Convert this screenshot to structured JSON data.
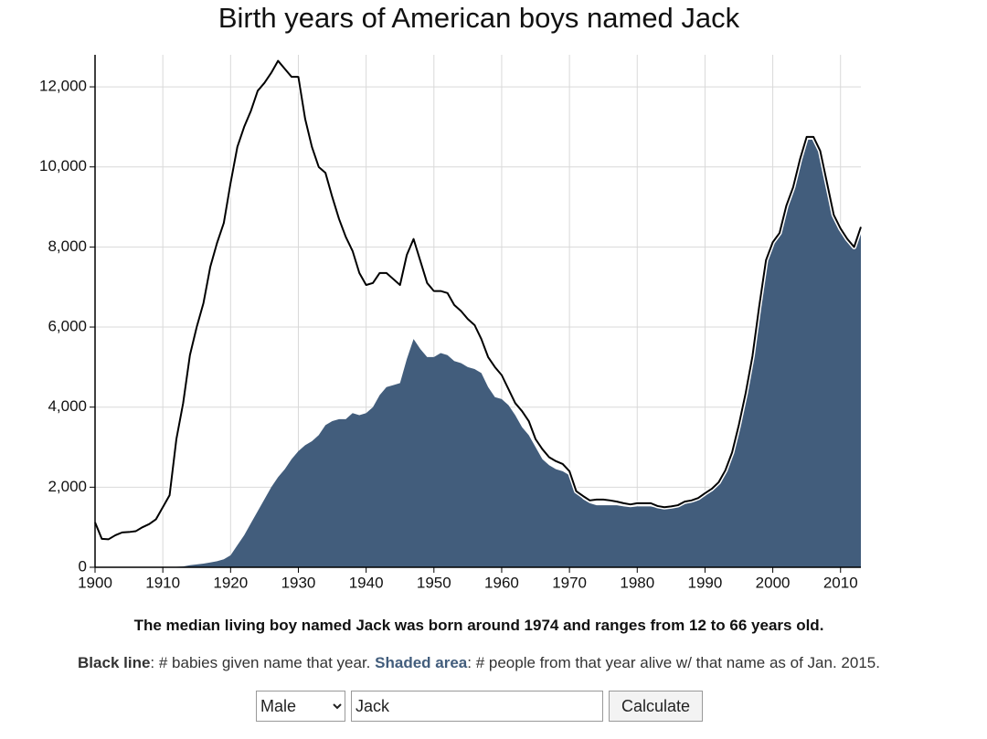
{
  "chart_data": {
    "type": "area-line",
    "title": "Birth years of American boys named Jack",
    "caption": "The median living boy named Jack was born around 1974 and ranges from 12 to 66 years old.",
    "x": [
      1900,
      1901,
      1902,
      1903,
      1904,
      1905,
      1906,
      1907,
      1908,
      1909,
      1910,
      1911,
      1912,
      1913,
      1914,
      1915,
      1916,
      1917,
      1918,
      1919,
      1920,
      1921,
      1922,
      1923,
      1924,
      1925,
      1926,
      1927,
      1928,
      1929,
      1930,
      1931,
      1932,
      1933,
      1934,
      1935,
      1936,
      1937,
      1938,
      1939,
      1940,
      1941,
      1942,
      1943,
      1944,
      1945,
      1946,
      1947,
      1948,
      1949,
      1950,
      1951,
      1952,
      1953,
      1954,
      1955,
      1956,
      1957,
      1958,
      1959,
      1960,
      1961,
      1962,
      1963,
      1964,
      1965,
      1966,
      1967,
      1968,
      1969,
      1970,
      1971,
      1972,
      1973,
      1974,
      1975,
      1976,
      1977,
      1978,
      1979,
      1980,
      1981,
      1982,
      1983,
      1984,
      1985,
      1986,
      1987,
      1988,
      1989,
      1990,
      1991,
      1992,
      1993,
      1994,
      1995,
      1996,
      1997,
      1998,
      1999,
      2000,
      2001,
      2002,
      2003,
      2004,
      2005,
      2006,
      2007,
      2008,
      2009,
      2010,
      2011,
      2012,
      2013
    ],
    "series": [
      {
        "name": "Shaded area",
        "description": ": # people from that year alive w/ that name as of Jan. 2015.",
        "kind": "area",
        "color": "#425d7c",
        "values": [
          0,
          0,
          0,
          0,
          0,
          0,
          0,
          0,
          0,
          0,
          0,
          0,
          10,
          20,
          50,
          70,
          90,
          120,
          150,
          200,
          300,
          550,
          800,
          1100,
          1400,
          1700,
          2000,
          2250,
          2450,
          2700,
          2900,
          3050,
          3150,
          3300,
          3550,
          3650,
          3700,
          3700,
          3850,
          3800,
          3850,
          4000,
          4300,
          4500,
          4550,
          4600,
          5200,
          5700,
          5450,
          5250,
          5250,
          5350,
          5300,
          5150,
          5100,
          5000,
          4950,
          4850,
          4500,
          4250,
          4200,
          4050,
          3800,
          3500,
          3300,
          3000,
          2700,
          2550,
          2450,
          2400,
          2300,
          1900,
          1700,
          1600,
          1550,
          1550,
          1550,
          1550,
          1520,
          1500,
          1520,
          1520,
          1520,
          1480,
          1450,
          1480,
          1500,
          1580,
          1620,
          1680,
          1800,
          1920,
          2080,
          2380,
          2820,
          3500,
          4280,
          5200,
          6430,
          7580,
          8040,
          8270,
          8950,
          9400,
          10100,
          10680,
          10680,
          10340,
          9550,
          8760,
          8420,
          8170,
          7980,
          8480
        ]
      },
      {
        "name": "Black line",
        "description": ": # babies given name that year.",
        "kind": "line",
        "color": "#000000",
        "values": [
          1120,
          710,
          700,
          800,
          870,
          880,
          900,
          1000,
          1080,
          1200,
          1500,
          1800,
          3200,
          4100,
          5300,
          6000,
          6600,
          7500,
          8100,
          8600,
          9600,
          10500,
          11000,
          11400,
          11900,
          12100,
          12350,
          12650,
          12450,
          12250,
          12250,
          11200,
          10500,
          10000,
          9850,
          9250,
          8700,
          8250,
          7900,
          7350,
          7050,
          7100,
          7350,
          7350,
          7200,
          7050,
          7800,
          8200,
          7650,
          7100,
          6900,
          6900,
          6850,
          6550,
          6400,
          6200,
          6050,
          5700,
          5250,
          5000,
          4800,
          4450,
          4100,
          3900,
          3650,
          3200,
          2950,
          2750,
          2650,
          2580,
          2400,
          1900,
          1780,
          1670,
          1690,
          1690,
          1670,
          1640,
          1600,
          1570,
          1600,
          1600,
          1600,
          1530,
          1500,
          1520,
          1550,
          1640,
          1670,
          1730,
          1850,
          1960,
          2120,
          2420,
          2870,
          3560,
          4350,
          5270,
          6520,
          7670,
          8120,
          8350,
          9030,
          9490,
          10180,
          10750,
          10750,
          10400,
          9600,
          8800,
          8460,
          8200,
          8000,
          8500
        ]
      }
    ],
    "xlim": [
      1900,
      2013
    ],
    "xticks": [
      1900,
      1910,
      1920,
      1930,
      1940,
      1950,
      1960,
      1970,
      1980,
      1990,
      2000,
      2010
    ],
    "ylim": [
      0,
      12800
    ],
    "yticks": [
      0,
      {
        "value": 2000,
        "label": "2,000"
      },
      {
        "value": 4000,
        "label": "4,000"
      },
      {
        "value": 6000,
        "label": "6,000"
      },
      {
        "value": 8000,
        "label": "8,000"
      },
      {
        "value": 10000,
        "label": "10,000"
      },
      {
        "value": 12000,
        "label": "12,000"
      }
    ],
    "grid": true
  },
  "controls": {
    "sex": "Male",
    "name": "Jack",
    "button": "Calculate"
  }
}
